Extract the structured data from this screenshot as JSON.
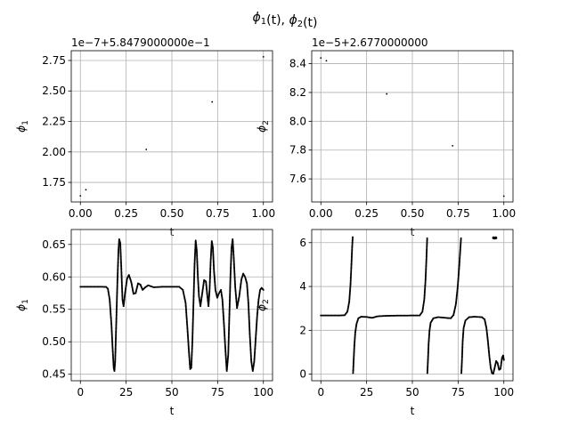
{
  "figure": {
    "suptitle_tex": "ϕ1(t), ϕ2(t)"
  },
  "chart_data": [
    {
      "id": "top-left",
      "type": "scatter",
      "xlabel": "t",
      "ylabel": "ϕ1",
      "offset_text": "1e−7+5.8479000000e−1",
      "xlim": [
        -0.05,
        1.05
      ],
      "ylim": [
        1.59,
        2.83
      ],
      "xticks": [
        0.0,
        0.25,
        0.5,
        0.75,
        1.0
      ],
      "xtick_labels": [
        "0.00",
        "0.25",
        "0.50",
        "0.75",
        "1.00"
      ],
      "yticks": [
        1.75,
        2.0,
        2.25,
        2.5,
        2.75
      ],
      "ytick_labels": [
        "1.75",
        "2.00",
        "2.25",
        "2.50",
        "2.75"
      ],
      "grid": true,
      "points": [
        [
          0.0,
          1.64
        ],
        [
          0.03,
          1.69
        ],
        [
          0.36,
          2.02
        ],
        [
          0.72,
          2.41
        ],
        [
          1.0,
          2.78
        ]
      ]
    },
    {
      "id": "top-right",
      "type": "scatter",
      "xlabel": "t",
      "ylabel": "ϕ2",
      "offset_text": "1e−5+2.6770000000",
      "xlim": [
        -0.05,
        1.05
      ],
      "ylim": [
        7.44,
        8.49
      ],
      "xticks": [
        0.0,
        0.25,
        0.5,
        0.75,
        1.0
      ],
      "xtick_labels": [
        "0.00",
        "0.25",
        "0.50",
        "0.75",
        "1.00"
      ],
      "yticks": [
        7.6,
        7.8,
        8.0,
        8.2,
        8.4
      ],
      "ytick_labels": [
        "7.6",
        "7.8",
        "8.0",
        "8.2",
        "8.4"
      ],
      "grid": true,
      "points": [
        [
          0.0,
          8.44
        ],
        [
          0.03,
          8.42
        ],
        [
          0.36,
          8.19
        ],
        [
          0.72,
          7.83
        ],
        [
          1.0,
          7.48
        ]
      ]
    },
    {
      "id": "bottom-left",
      "type": "scatter",
      "xlabel": "t",
      "ylabel": "ϕ1",
      "xlim": [
        -5,
        105
      ],
      "ylim": [
        0.44,
        0.673
      ],
      "xticks": [
        0,
        25,
        50,
        75,
        100
      ],
      "xtick_labels": [
        "0",
        "25",
        "50",
        "75",
        "100"
      ],
      "yticks": [
        0.45,
        0.5,
        0.55,
        0.6,
        0.65
      ],
      "ytick_labels": [
        "0.45",
        "0.50",
        "0.55",
        "0.60",
        "0.65"
      ],
      "grid": true,
      "series_points": [
        [
          0,
          0.5848
        ],
        [
          10,
          0.5848
        ],
        [
          14,
          0.5846
        ],
        [
          15,
          0.582
        ],
        [
          16,
          0.565
        ],
        [
          17,
          0.525
        ],
        [
          17.6,
          0.49
        ],
        [
          18.2,
          0.46
        ],
        [
          18.6,
          0.455
        ],
        [
          19,
          0.47
        ],
        [
          19.5,
          0.52
        ],
        [
          20.2,
          0.59
        ],
        [
          20.8,
          0.64
        ],
        [
          21.2,
          0.658
        ],
        [
          21.8,
          0.652
        ],
        [
          22.4,
          0.61
        ],
        [
          23,
          0.565
        ],
        [
          23.6,
          0.555
        ],
        [
          24.4,
          0.575
        ],
        [
          25.5,
          0.597
        ],
        [
          26.5,
          0.603
        ],
        [
          27.8,
          0.592
        ],
        [
          29,
          0.574
        ],
        [
          30.2,
          0.575
        ],
        [
          31.5,
          0.59
        ],
        [
          32.8,
          0.588
        ],
        [
          34,
          0.58
        ],
        [
          35.5,
          0.584
        ],
        [
          37,
          0.587
        ],
        [
          40,
          0.584
        ],
        [
          45,
          0.5848
        ],
        [
          50,
          0.5848
        ],
        [
          54,
          0.5847
        ],
        [
          56,
          0.58
        ],
        [
          57.5,
          0.56
        ],
        [
          58.5,
          0.52
        ],
        [
          59.3,
          0.485
        ],
        [
          60,
          0.458
        ],
        [
          60.6,
          0.46
        ],
        [
          61.2,
          0.5
        ],
        [
          61.8,
          0.56
        ],
        [
          62.4,
          0.62
        ],
        [
          63,
          0.656
        ],
        [
          63.6,
          0.64
        ],
        [
          64.2,
          0.6
        ],
        [
          64.8,
          0.57
        ],
        [
          65.6,
          0.555
        ],
        [
          66.6,
          0.575
        ],
        [
          67.6,
          0.595
        ],
        [
          68.6,
          0.593
        ],
        [
          69.4,
          0.57
        ],
        [
          70,
          0.555
        ],
        [
          70.6,
          0.58
        ],
        [
          71.2,
          0.625
        ],
        [
          71.8,
          0.655
        ],
        [
          72.4,
          0.645
        ],
        [
          73,
          0.61
        ],
        [
          73.8,
          0.58
        ],
        [
          74.8,
          0.568
        ],
        [
          75.8,
          0.575
        ],
        [
          76.8,
          0.58
        ],
        [
          77.6,
          0.565
        ],
        [
          78.4,
          0.53
        ],
        [
          79.2,
          0.49
        ],
        [
          80,
          0.455
        ],
        [
          80.8,
          0.48
        ],
        [
          81.4,
          0.54
        ],
        [
          82,
          0.6
        ],
        [
          82.6,
          0.645
        ],
        [
          83.2,
          0.658
        ],
        [
          83.8,
          0.63
        ],
        [
          84.6,
          0.585
        ],
        [
          85.6,
          0.552
        ],
        [
          86.8,
          0.57
        ],
        [
          88,
          0.596
        ],
        [
          89,
          0.605
        ],
        [
          90,
          0.6
        ],
        [
          91,
          0.59
        ],
        [
          91.8,
          0.56
        ],
        [
          92.6,
          0.51
        ],
        [
          93.4,
          0.47
        ],
        [
          94.2,
          0.455
        ],
        [
          95,
          0.47
        ],
        [
          95.8,
          0.505
        ],
        [
          96.6,
          0.54
        ],
        [
          97.4,
          0.565
        ],
        [
          98.2,
          0.58
        ],
        [
          99,
          0.583
        ],
        [
          100,
          0.58
        ]
      ]
    },
    {
      "id": "bottom-right",
      "type": "scatter",
      "xlabel": "t",
      "ylabel": "ϕ2",
      "xlim": [
        -5,
        105
      ],
      "ylim": [
        -0.3,
        6.6
      ],
      "xticks": [
        0,
        25,
        50,
        75,
        100
      ],
      "xtick_labels": [
        "0",
        "25",
        "50",
        "75",
        "100"
      ],
      "yticks": [
        0,
        2,
        4,
        6
      ],
      "ytick_labels": [
        "0",
        "2",
        "4",
        "6"
      ],
      "grid": true,
      "segments": [
        [
          [
            0,
            2.677
          ],
          [
            10,
            2.677
          ],
          [
            13,
            2.69
          ],
          [
            14.5,
            2.85
          ],
          [
            15.5,
            3.3
          ],
          [
            16.2,
            4.1
          ],
          [
            16.7,
            5.0
          ],
          [
            17.1,
            5.8
          ],
          [
            17.4,
            6.25
          ]
        ],
        [
          [
            17.6,
            0.05
          ],
          [
            17.9,
            0.6
          ],
          [
            18.3,
            1.3
          ],
          [
            18.8,
            1.9
          ],
          [
            19.5,
            2.3
          ],
          [
            20.5,
            2.55
          ],
          [
            22,
            2.62
          ],
          [
            25,
            2.61
          ],
          [
            28,
            2.57
          ],
          [
            31,
            2.64
          ],
          [
            35,
            2.66
          ],
          [
            40,
            2.67
          ],
          [
            50,
            2.677
          ],
          [
            54,
            2.68
          ],
          [
            55.5,
            2.85
          ],
          [
            56.5,
            3.4
          ],
          [
            57.2,
            4.3
          ],
          [
            57.7,
            5.3
          ],
          [
            58.1,
            6.2
          ]
        ],
        [
          [
            58.2,
            0.05
          ],
          [
            58.5,
            0.6
          ],
          [
            58.9,
            1.4
          ],
          [
            59.4,
            2.0
          ],
          [
            60,
            2.35
          ],
          [
            61.5,
            2.55
          ],
          [
            64,
            2.6
          ],
          [
            68,
            2.57
          ],
          [
            71,
            2.55
          ],
          [
            72.5,
            2.7
          ],
          [
            73.8,
            3.2
          ],
          [
            74.8,
            4.0
          ],
          [
            75.6,
            4.9
          ],
          [
            76.2,
            5.7
          ],
          [
            76.6,
            6.2
          ]
        ],
        [
          [
            76.8,
            0.05
          ],
          [
            77.1,
            0.6
          ],
          [
            77.5,
            1.5
          ],
          [
            78,
            2.1
          ],
          [
            79,
            2.45
          ],
          [
            81,
            2.6
          ],
          [
            84,
            2.62
          ],
          [
            88,
            2.6
          ],
          [
            89.5,
            2.5
          ],
          [
            90.5,
            2.1
          ],
          [
            91.3,
            1.5
          ],
          [
            92.1,
            0.8
          ],
          [
            92.8,
            0.3
          ],
          [
            93.5,
            0.05
          ],
          [
            94.2,
            0.02
          ],
          [
            95,
            0.3
          ],
          [
            95.8,
            0.6
          ],
          [
            96.6,
            0.5
          ],
          [
            97.4,
            0.2
          ],
          [
            98.2,
            0.25
          ],
          [
            99,
            0.75
          ],
          [
            99.6,
            0.85
          ],
          [
            100,
            0.65
          ]
        ]
      ],
      "cluster_points": [
        [
          94.4,
          6.22
        ],
        [
          95.0,
          6.21
        ],
        [
          95.6,
          6.22
        ]
      ]
    }
  ]
}
